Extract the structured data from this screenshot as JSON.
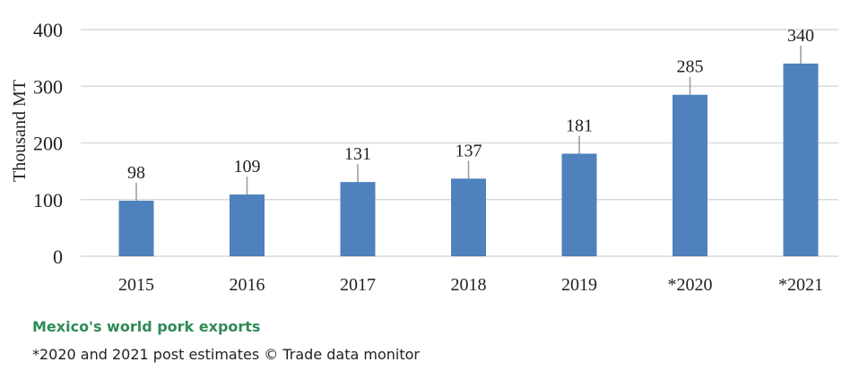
{
  "chart_data": {
    "type": "bar",
    "categories": [
      "2015",
      "2016",
      "2017",
      "2018",
      "2019",
      "*2020",
      "*2021"
    ],
    "values": [
      98,
      109,
      131,
      137,
      181,
      285,
      340
    ],
    "data_labels": [
      "98",
      "109",
      "131",
      "137",
      "181",
      "285",
      "340"
    ],
    "title": "",
    "xlabel": "",
    "ylabel": "Thousand MT",
    "ylim": [
      0,
      400
    ],
    "yticks": [
      0,
      100,
      200,
      300,
      400
    ],
    "ytick_labels": [
      "0",
      "100",
      "200",
      "300",
      "400"
    ],
    "grid": true,
    "bar_color": "#4f81bd"
  },
  "caption": {
    "title": "Mexico's world pork exports",
    "note": "*2020 and 2021 post estimates © Trade data monitor"
  },
  "colors": {
    "caption_title": "#2e8b57",
    "grid": "#d9d9d9",
    "bar": "#4f81bd"
  }
}
